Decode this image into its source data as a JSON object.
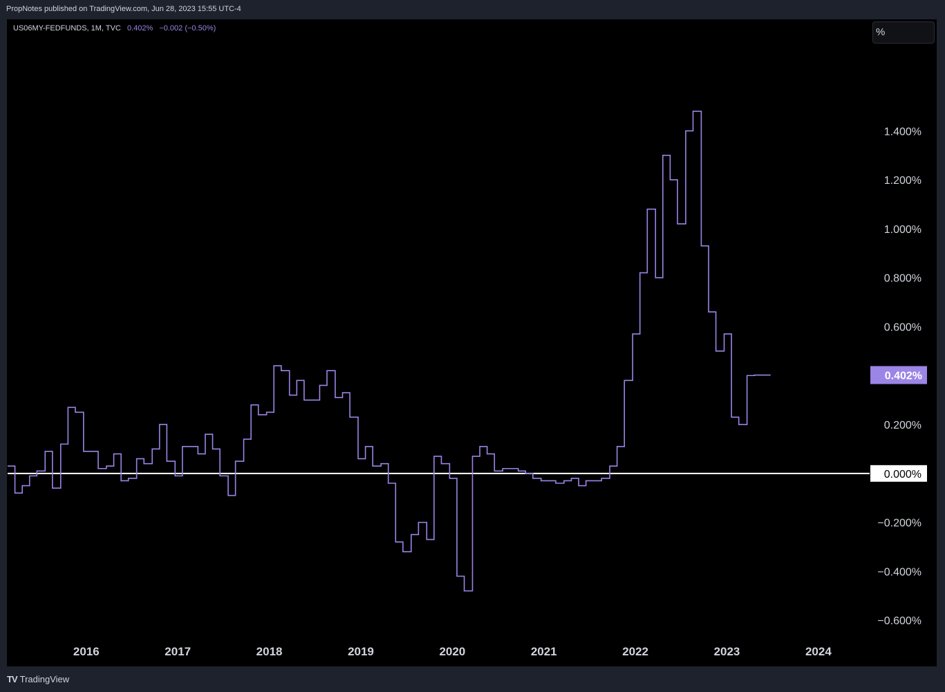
{
  "header": {
    "published": "PropNotes published on TradingView.com, Jun 28, 2023 15:55 UTC-4"
  },
  "legend": {
    "symbol": "US06MY-FEDFUNDS, 1M, TVC",
    "value": "0.402%",
    "change": "−0.002 (−0.50%)"
  },
  "price_axis": {
    "unit_label": "%",
    "current_label": "0.402%",
    "zero_label": "0.000%"
  },
  "footer": {
    "brand": "TradingView"
  },
  "colors": {
    "line": "#9b85e6",
    "zero_line": "#ffffff",
    "current_badge": "#9b85e6",
    "background": "#000000"
  },
  "chart_data": {
    "type": "line",
    "interpolation": "step",
    "ylim": [
      -0.67,
      1.85
    ],
    "xlim": [
      2015.14,
      2024.56
    ],
    "y_ticks": [
      -0.6,
      -0.4,
      -0.2,
      0.0,
      0.2,
      0.4,
      0.6,
      0.8,
      1.0,
      1.2,
      1.4
    ],
    "y_tick_labels": [
      "−0.600%",
      "−0.400%",
      "−0.200%",
      "0.000%",
      "0.200%",
      "0.400%",
      "0.600%",
      "0.800%",
      "1.000%",
      "1.200%",
      "1.400%"
    ],
    "x_ticks": [
      2016,
      2017,
      2018,
      2019,
      2020,
      2021,
      2022,
      2023,
      2024
    ],
    "x_tick_labels": [
      "2016",
      "2017",
      "2018",
      "2019",
      "2020",
      "2021",
      "2022",
      "2023",
      "2024"
    ],
    "grid": false,
    "series": [
      {
        "x": [
          2015.14,
          2015.22,
          2015.3,
          2015.38,
          2015.46,
          2015.55,
          2015.63,
          2015.72,
          2015.8,
          2015.88,
          2015.97,
          2016.05,
          2016.13,
          2016.22,
          2016.3,
          2016.38,
          2016.46,
          2016.55,
          2016.63,
          2016.72,
          2016.8,
          2016.88,
          2016.97,
          2017.05,
          2017.13,
          2017.22,
          2017.3,
          2017.38,
          2017.46,
          2017.55,
          2017.63,
          2017.72,
          2017.8,
          2017.88,
          2017.97,
          2018.05,
          2018.13,
          2018.22,
          2018.3,
          2018.38,
          2018.46,
          2018.55,
          2018.63,
          2018.72,
          2018.8,
          2018.88,
          2018.97,
          2019.05,
          2019.13,
          2019.22,
          2019.3,
          2019.38,
          2019.46,
          2019.55,
          2019.63,
          2019.72,
          2019.8,
          2019.88,
          2019.97,
          2020.05,
          2020.13,
          2020.22,
          2020.3,
          2020.38,
          2020.46,
          2020.55,
          2020.63,
          2020.72,
          2020.8,
          2020.88,
          2020.97,
          2021.05,
          2021.13,
          2021.22,
          2021.3,
          2021.38,
          2021.46,
          2021.55,
          2021.63,
          2021.72,
          2021.8,
          2021.88,
          2021.97,
          2022.05,
          2022.13,
          2022.22,
          2022.3,
          2022.38,
          2022.46,
          2022.55,
          2022.63,
          2022.72,
          2022.8,
          2022.88,
          2022.97,
          2023.05,
          2023.13,
          2023.22,
          2023.3,
          2023.38
        ],
        "values": [
          0.03,
          -0.08,
          -0.05,
          -0.01,
          0.01,
          0.09,
          -0.06,
          0.12,
          0.27,
          0.25,
          0.09,
          0.09,
          0.02,
          0.03,
          0.08,
          -0.03,
          -0.02,
          0.06,
          0.04,
          0.1,
          0.2,
          0.05,
          -0.01,
          0.11,
          0.11,
          0.08,
          0.16,
          0.1,
          -0.01,
          -0.09,
          0.05,
          0.14,
          0.28,
          0.24,
          0.25,
          0.44,
          0.42,
          0.32,
          0.38,
          0.3,
          0.3,
          0.36,
          0.42,
          0.31,
          0.33,
          0.23,
          0.06,
          0.11,
          0.03,
          0.04,
          -0.04,
          -0.28,
          -0.32,
          -0.25,
          -0.2,
          -0.27,
          0.07,
          0.04,
          -0.02,
          -0.42,
          -0.48,
          0.07,
          0.11,
          0.08,
          0.01,
          0.02,
          0.02,
          0.01,
          0.0,
          -0.02,
          -0.03,
          -0.03,
          -0.04,
          -0.03,
          -0.02,
          -0.05,
          -0.03,
          -0.03,
          -0.02,
          0.03,
          0.11,
          0.38,
          0.57,
          0.82,
          1.08,
          0.8,
          1.3,
          1.2,
          1.02,
          1.4,
          1.48,
          0.93,
          0.66,
          0.5,
          0.57,
          0.23,
          0.2,
          0.4,
          0.402,
          0.402
        ]
      }
    ]
  }
}
